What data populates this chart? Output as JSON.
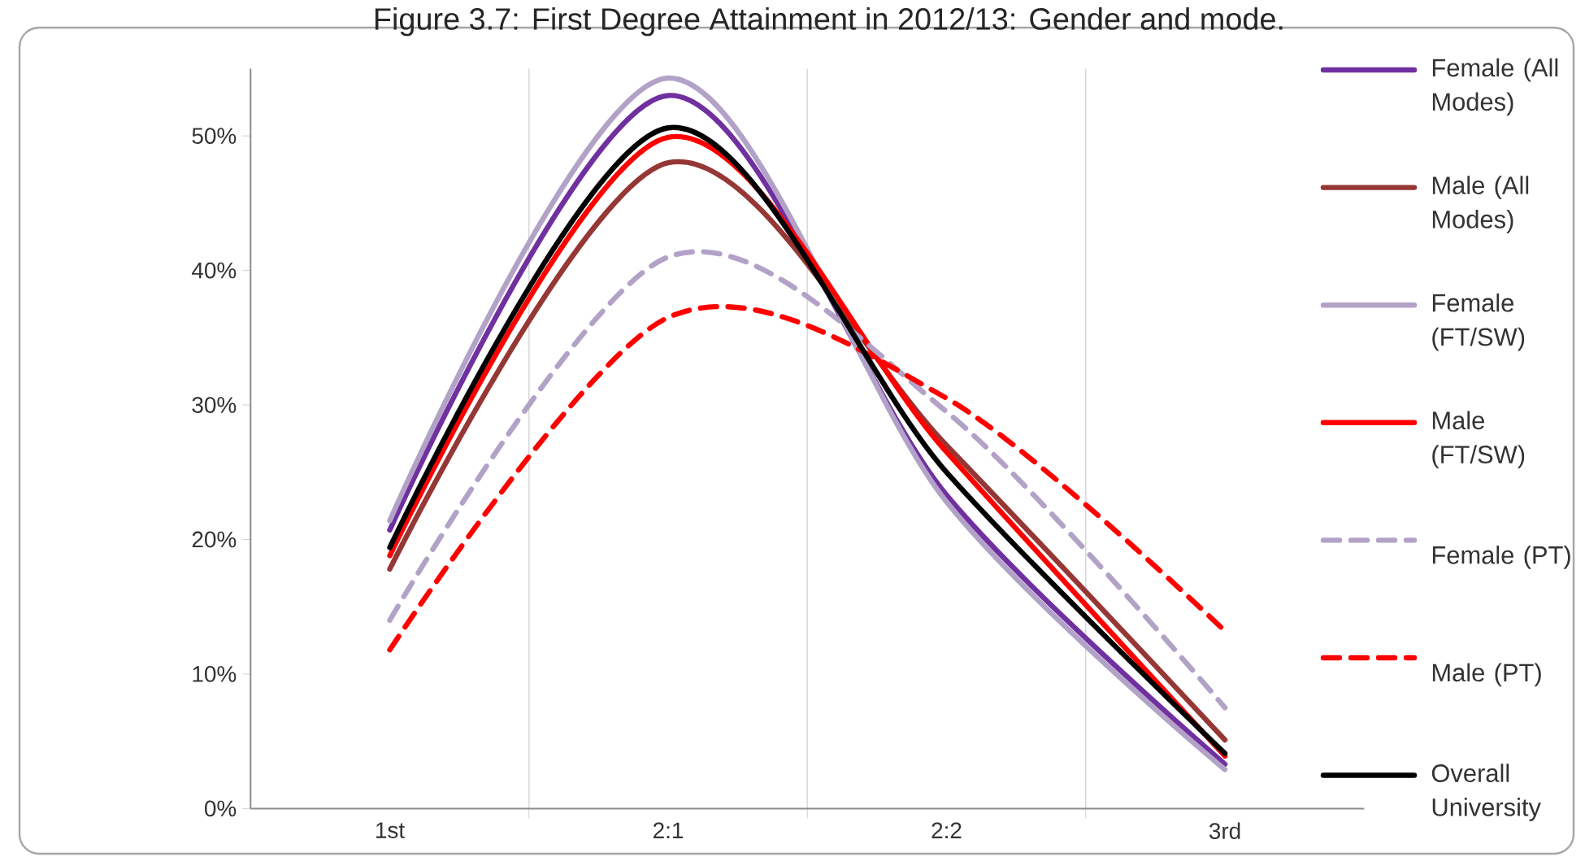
{
  "chart_data": {
    "type": "line",
    "title": "Figure 3.7: First Degree Attainment in 2012/13: Gender and mode.",
    "categories": [
      "1st",
      "2:1",
      "2:2",
      "3rd"
    ],
    "series": [
      {
        "name": "Female (All Modes)",
        "color": "#7030a0",
        "values": [
          20.7,
          53.0,
          23.3,
          3.3
        ]
      },
      {
        "name": "Male (All Modes)",
        "color": "#953735",
        "values": [
          17.8,
          48.0,
          27.0,
          5.1
        ]
      },
      {
        "name": "Female (FT/SW)",
        "color": "#b3a2c7",
        "values": [
          21.4,
          54.3,
          22.8,
          2.9
        ]
      },
      {
        "name": "Male (FT/SW)",
        "color": "#ff0000",
        "values": [
          18.8,
          49.9,
          26.5,
          3.9
        ]
      },
      {
        "name": "Female (PT)",
        "color": "#b3a2c7",
        "values": [
          14.0,
          41.0,
          29.5,
          7.5
        ],
        "line_style": "dashed"
      },
      {
        "name": "Male (PT)",
        "color": "#ff0000",
        "values": [
          11.8,
          36.5,
          30.5,
          13.2
        ],
        "line_style": "dashed"
      },
      {
        "name": "Overall University",
        "color": "#000000",
        "values": [
          19.4,
          50.6,
          25.0,
          4.1
        ]
      }
    ],
    "ylim": [
      0,
      55
    ],
    "yticks": [
      {
        "value": 0,
        "label": "0%"
      },
      {
        "value": 10,
        "label": "10%"
      },
      {
        "value": 20,
        "label": "20%"
      },
      {
        "value": 30,
        "label": "30%"
      },
      {
        "value": 40,
        "label": "40%"
      },
      {
        "value": 50,
        "label": "50%"
      }
    ],
    "grid": "x",
    "legend": "right",
    "line_style": "solid",
    "marker": "none"
  }
}
